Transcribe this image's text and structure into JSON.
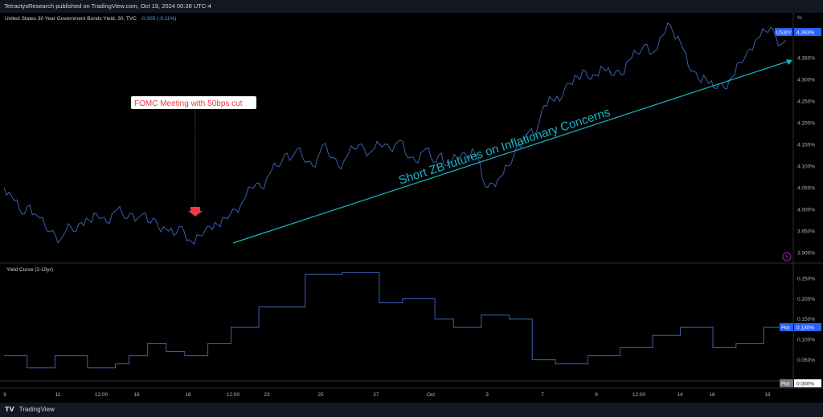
{
  "header": {
    "published": "TetractysResearch published on TradingView.com, Oct 19, 2024 00:38 UTC-4"
  },
  "footer": {
    "brand": "TradingView"
  },
  "colors": {
    "background": "#000000",
    "line": "#3b5fb0",
    "annotation": "#19b6c8",
    "callout_text": "#f23645",
    "callout_bg": "#ffffff",
    "arrow": "#f23645",
    "price_tag": "#2962ff"
  },
  "chart_data": [
    {
      "type": "line",
      "pane_title": "United States 30 Year Government Bonds Yield, 30, TVC",
      "pane_change": "-0.005 (-0.11%)",
      "y_unit": "%",
      "ylim": [
        3.88,
        4.45
      ],
      "yticks": [
        "4.350%",
        "4.300%",
        "4.250%",
        "4.200%",
        "4.150%",
        "4.100%",
        "4.050%",
        "4.000%",
        "3.950%",
        "3.900%"
      ],
      "yticks_values": [
        4.35,
        4.3,
        4.25,
        4.2,
        4.15,
        4.1,
        4.05,
        4.0,
        3.95,
        3.9
      ],
      "last_label": "US30Y",
      "last_value_label": "4.393%",
      "last_value": 4.393,
      "series": [
        {
          "values": [
            4.05,
            4.04,
            4.02,
            4.0,
            3.99,
            4.01,
            3.99,
            3.98,
            3.96,
            3.95,
            3.94,
            3.93,
            3.95,
            3.96,
            3.95,
            3.97,
            3.98,
            3.97,
            3.99,
            3.98,
            3.97,
            3.99,
            4.0,
            3.99,
            3.98,
            3.99,
            3.98,
            3.99,
            3.97,
            3.98,
            3.96,
            3.96,
            3.95,
            3.94,
            3.96,
            3.95,
            3.93,
            3.92,
            3.94,
            3.95,
            3.96,
            3.97,
            3.96,
            3.98,
            3.99,
            4.0,
            4.01,
            4.03,
            4.05,
            4.06,
            4.05,
            4.07,
            4.09,
            4.1,
            4.11,
            4.13,
            4.12,
            4.14,
            4.12,
            4.11,
            4.1,
            4.12,
            4.15,
            4.13,
            4.12,
            4.1,
            4.11,
            4.13,
            4.14,
            4.15,
            4.14,
            4.13,
            4.14,
            4.15,
            4.15,
            4.14,
            4.15,
            4.16,
            4.13,
            4.12,
            4.11,
            4.13,
            4.14,
            4.12,
            4.11,
            4.13,
            4.1,
            4.11,
            4.12,
            4.13,
            4.12,
            4.14,
            4.12,
            4.07,
            4.05,
            4.06,
            4.07,
            4.08,
            4.1,
            4.12,
            4.15,
            4.16,
            4.18,
            4.17,
            4.2,
            4.24,
            4.26,
            4.25,
            4.25,
            4.28,
            4.29,
            4.31,
            4.3,
            4.32,
            4.3,
            4.31,
            4.33,
            4.32,
            4.31,
            4.32,
            4.31,
            4.34,
            4.35,
            4.36,
            4.37,
            4.38,
            4.36,
            4.37,
            4.4,
            4.43,
            4.41,
            4.4,
            4.37,
            4.33,
            4.32,
            4.3,
            4.31,
            4.29,
            4.28,
            4.29,
            4.28,
            4.3,
            4.31,
            4.34,
            4.35,
            4.37,
            4.39,
            4.4,
            4.41,
            4.42,
            4.4,
            4.38,
            4.39
          ]
        }
      ]
    },
    {
      "type": "line",
      "step": true,
      "pane_title": "Yield Curve (2-10yr)",
      "y_unit": "%",
      "ylim": [
        0.0,
        0.28
      ],
      "yticks": [
        "0.250%",
        "0.200%",
        "0.150%",
        "0.100%",
        "0.050%"
      ],
      "yticks_values": [
        0.25,
        0.2,
        0.15,
        0.1,
        0.05
      ],
      "plot_label": "Plot",
      "plot_value_label": "0.130%",
      "plot_value": 0.13,
      "zero_label": "Plot",
      "zero_value_label": "0.000%",
      "series": [
        {
          "values": [
            0.06,
            0.06,
            0.06,
            0.06,
            0.06,
            0.03,
            0.03,
            0.03,
            0.03,
            0.03,
            0.03,
            0.06,
            0.06,
            0.06,
            0.06,
            0.06,
            0.06,
            0.06,
            0.03,
            0.03,
            0.03,
            0.03,
            0.03,
            0.03,
            0.04,
            0.04,
            0.04,
            0.06,
            0.06,
            0.06,
            0.06,
            0.09,
            0.09,
            0.09,
            0.09,
            0.07,
            0.07,
            0.07,
            0.07,
            0.06,
            0.06,
            0.06,
            0.06,
            0.06,
            0.09,
            0.09,
            0.09,
            0.09,
            0.09,
            0.13,
            0.13,
            0.13,
            0.13,
            0.13,
            0.13,
            0.18,
            0.18,
            0.18,
            0.18,
            0.18,
            0.18,
            0.18,
            0.18,
            0.18,
            0.18,
            0.26,
            0.26,
            0.26,
            0.26,
            0.26,
            0.26,
            0.26,
            0.26,
            0.265,
            0.265,
            0.265,
            0.265,
            0.265,
            0.265,
            0.265,
            0.265,
            0.19,
            0.19,
            0.19,
            0.19,
            0.19,
            0.2,
            0.2,
            0.2,
            0.2,
            0.2,
            0.2,
            0.2,
            0.15,
            0.15,
            0.15,
            0.15,
            0.13,
            0.13,
            0.13,
            0.13,
            0.13,
            0.13,
            0.16,
            0.16,
            0.16,
            0.16,
            0.16,
            0.16,
            0.15,
            0.15,
            0.15,
            0.15,
            0.15,
            0.05,
            0.05,
            0.05,
            0.05,
            0.05,
            0.04,
            0.04,
            0.04,
            0.04,
            0.04,
            0.04,
            0.04,
            0.06,
            0.06,
            0.06,
            0.06,
            0.06,
            0.06,
            0.06,
            0.08,
            0.08,
            0.08,
            0.08,
            0.08,
            0.08,
            0.08,
            0.11,
            0.11,
            0.11,
            0.11,
            0.11,
            0.11,
            0.13,
            0.13,
            0.13,
            0.13,
            0.13,
            0.13,
            0.13,
            0.08,
            0.08,
            0.08,
            0.08,
            0.08,
            0.09,
            0.09,
            0.09,
            0.09,
            0.09,
            0.09,
            0.13,
            0.13,
            0.13,
            0.13,
            0.13,
            0.13
          ]
        }
      ]
    }
  ],
  "x_axis_labels": [
    "9",
    "11",
    "12:00",
    "16",
    "18",
    "12:00",
    "23",
    "25",
    "27",
    "Oct",
    "3",
    "7",
    "9",
    "12:00",
    "14",
    "16",
    "18"
  ],
  "annotations": {
    "callout_text": "FOMC Meeting with 50bps cut",
    "trend_text": "Short ZB futures on Inflationary Concerns"
  }
}
